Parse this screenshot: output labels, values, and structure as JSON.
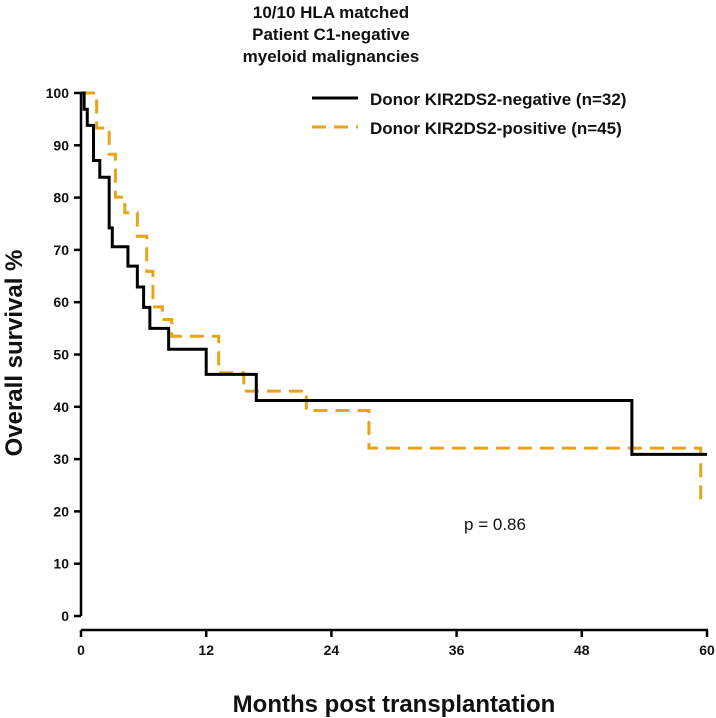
{
  "chart_data": {
    "type": "line",
    "subtype": "kaplan-meier-step",
    "title": [
      "10/10 HLA matched",
      "Patient C1-negative",
      "myeloid malignancies"
    ],
    "xlabel": "Months post transplantation",
    "ylabel": "Overall survival %",
    "xlim": [
      0,
      60
    ],
    "ylim": [
      0,
      100
    ],
    "xticks": [
      0,
      12,
      24,
      36,
      48,
      60
    ],
    "yticks": [
      0,
      10,
      20,
      30,
      40,
      50,
      60,
      70,
      80,
      90,
      100
    ],
    "annotation": "p = 0.86",
    "legend_position": "top-right",
    "series": [
      {
        "name": "Donor KIR2DS2-negative (n=32)",
        "color": "#000000",
        "style": "solid",
        "x": [
          0,
          0.3,
          0.6,
          1.2,
          1.8,
          2.7,
          3.0,
          3.6,
          4.5,
          5.4,
          6.0,
          6.6,
          8.4,
          12.0,
          16.8,
          52.8,
          60
        ],
        "y": [
          100,
          96.9,
          93.8,
          87.1,
          83.9,
          74.2,
          70.6,
          70.6,
          66.9,
          62.9,
          59.0,
          55.0,
          51.0,
          46.2,
          41.2,
          30.9,
          30.9
        ]
      },
      {
        "name": "Donor KIR2DS2-positive (n=45)",
        "color": "#E8A317",
        "style": "dashed",
        "x": [
          0,
          1.5,
          2.7,
          3.3,
          4.2,
          5.4,
          6.3,
          6.9,
          7.8,
          8.7,
          13.2,
          15.6,
          21.6,
          27.6,
          59.4,
          59.4
        ],
        "y": [
          100,
          93.3,
          88.3,
          80.1,
          77.1,
          72.6,
          65.9,
          59.1,
          56.7,
          53.5,
          46.5,
          43.0,
          39.3,
          32.1,
          32.1,
          21.5
        ]
      }
    ]
  }
}
